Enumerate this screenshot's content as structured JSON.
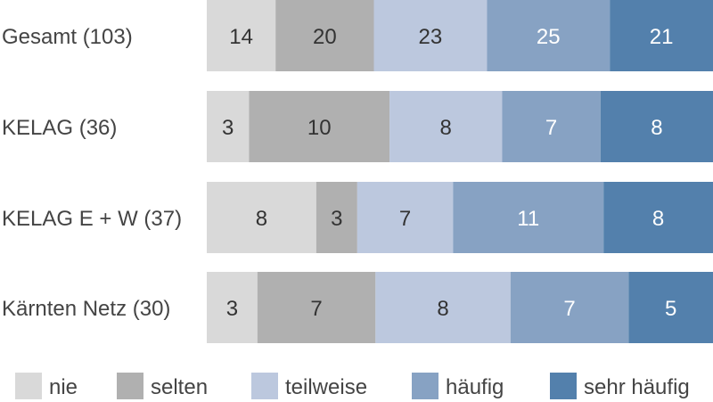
{
  "chart_data": {
    "type": "bar",
    "orientation": "horizontal",
    "stacked": true,
    "categories": [
      "Gesamt (103)",
      "KELAG (36)",
      "KELAG E + W (37)",
      "Kärnten Netz (30)"
    ],
    "series": [
      {
        "name": "nie",
        "color": "#d9d9d9",
        "text_color": "#333333",
        "values": [
          14,
          3,
          8,
          3
        ]
      },
      {
        "name": "selten",
        "color": "#b0b0b0",
        "text_color": "#333333",
        "values": [
          20,
          10,
          3,
          7
        ]
      },
      {
        "name": "teilweise",
        "color": "#bcc8de",
        "text_color": "#333333",
        "values": [
          23,
          8,
          7,
          8
        ]
      },
      {
        "name": "häufig",
        "color": "#87a2c3",
        "text_color": "#ffffff",
        "values": [
          25,
          7,
          11,
          7
        ]
      },
      {
        "name": "sehr häufig",
        "color": "#5380ac",
        "text_color": "#ffffff",
        "values": [
          21,
          8,
          8,
          5
        ]
      }
    ],
    "legend_position": "bottom",
    "grid": false
  }
}
